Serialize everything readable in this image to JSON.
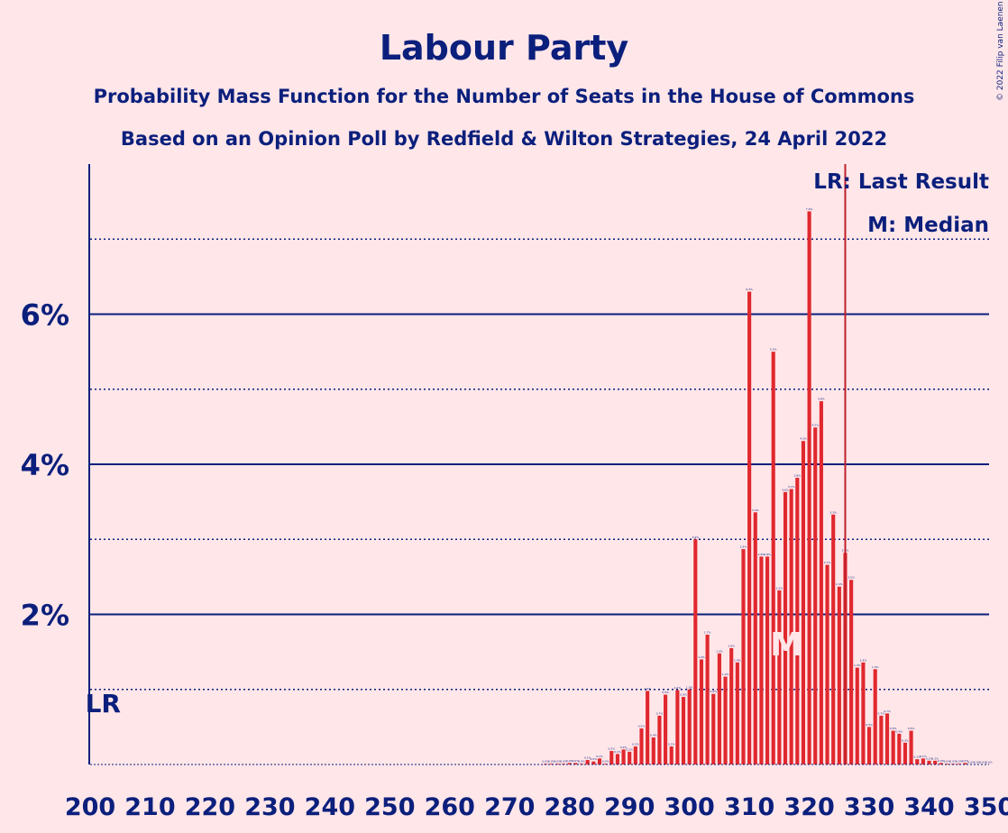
{
  "chart_data": {
    "type": "bar",
    "title": "Labour Party",
    "subtitle": "Probability Mass Function for the Number of Seats in the House of Commons",
    "subtitle2": "Based on an Opinion Poll by Redfield & Wilton Strategies, 24 April 2022",
    "copyright": "© 2022 Filip van Laenen",
    "legend": {
      "last_result": "LR: Last Result",
      "median": "M: Median",
      "placement": "top-right"
    },
    "xlim": [
      200,
      350
    ],
    "ylim": [
      0,
      8
    ],
    "x_ticks": [
      "200",
      "210",
      "220",
      "230",
      "240",
      "250",
      "260",
      "270",
      "280",
      "290",
      "300",
      "310",
      "320",
      "330",
      "340",
      "350"
    ],
    "y_ticks": [
      {
        "value": 2,
        "label": "2%"
      },
      {
        "value": 4,
        "label": "4%"
      },
      {
        "value": 6,
        "label": "6%"
      }
    ],
    "y_dotted_lines": [
      1,
      3,
      5,
      7
    ],
    "last_result_seat": 202,
    "last_result_label": "LR",
    "median_seat": 316,
    "median_label": "M",
    "majority_line_seat": 326,
    "colors": {
      "bar": "#E0282E",
      "axis": "#0B1F7C",
      "background": "#FFE6E9",
      "majority_line": "#C0202A"
    },
    "seats": [
      276,
      277,
      278,
      279,
      280,
      281,
      282,
      283,
      284,
      285,
      286,
      287,
      288,
      289,
      290,
      291,
      292,
      293,
      294,
      295,
      296,
      297,
      298,
      299,
      300,
      301,
      302,
      303,
      304,
      305,
      306,
      307,
      308,
      309,
      310,
      311,
      312,
      313,
      314,
      315,
      316,
      317,
      318,
      319,
      320,
      321,
      322,
      323,
      324,
      325,
      326,
      327,
      328,
      329,
      330,
      331,
      332,
      333,
      334,
      335,
      336,
      337,
      338,
      339,
      340,
      341,
      342,
      343,
      344,
      345,
      346,
      347,
      348,
      349,
      350
    ],
    "values": [
      0.01,
      0.01,
      0.01,
      0.01,
      0.02,
      0.02,
      0.01,
      0.06,
      0.04,
      0.08,
      0.01,
      0.18,
      0.14,
      0.2,
      0.17,
      0.24,
      0.48,
      0.98,
      0.36,
      0.65,
      0.93,
      0.24,
      0.99,
      0.9,
      1.0,
      3.0,
      1.4,
      1.73,
      0.94,
      1.48,
      1.17,
      1.55,
      1.36,
      2.87,
      6.3,
      3.36,
      2.77,
      2.77,
      5.5,
      2.32,
      3.63,
      3.67,
      3.82,
      4.31,
      7.37,
      4.49,
      4.84,
      2.66,
      3.33,
      2.37,
      2.82,
      2.46,
      1.29,
      1.36,
      0.5,
      1.27,
      0.65,
      0.68,
      0.45,
      0.41,
      0.29,
      0.45,
      0.07,
      0.08,
      0.05,
      0.05,
      0.02,
      0.01,
      0.01,
      0.01,
      0.02,
      0.0,
      0.0,
      0.0,
      0.0
    ]
  }
}
